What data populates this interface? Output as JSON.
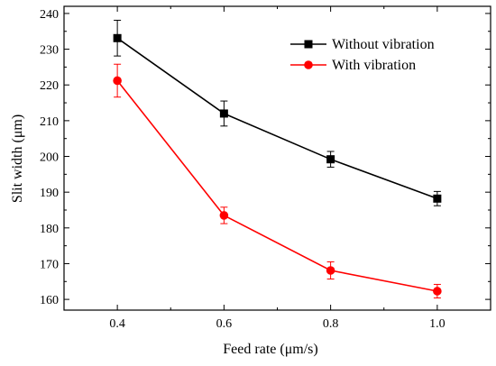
{
  "chart_data": {
    "type": "line",
    "xlabel": "Feed rate  (μm/s)",
    "ylabel": "Slit width (μm)",
    "x": [
      0.4,
      0.6,
      0.8,
      1.0
    ],
    "x_tick_labels": [
      "0.4",
      "0.6",
      "0.8",
      "1.0"
    ],
    "y_tick_labels": [
      "160",
      "170",
      "180",
      "190",
      "200",
      "210",
      "220",
      "230",
      "240"
    ],
    "xlim": [
      0.3,
      1.1
    ],
    "ylim": [
      157,
      242
    ],
    "grid": false,
    "legend_position": "top-right",
    "series": [
      {
        "name": "Without vibration",
        "color": "#000000",
        "marker": "square",
        "values": [
          233.1,
          212.0,
          199.2,
          188.2
        ],
        "errors": [
          5.0,
          3.5,
          2.2,
          2.0
        ]
      },
      {
        "name": "With vibration",
        "color": "#ff0000",
        "marker": "circle",
        "values": [
          221.2,
          183.5,
          168.1,
          162.3
        ],
        "errors": [
          4.6,
          2.3,
          2.4,
          1.9
        ]
      }
    ]
  }
}
